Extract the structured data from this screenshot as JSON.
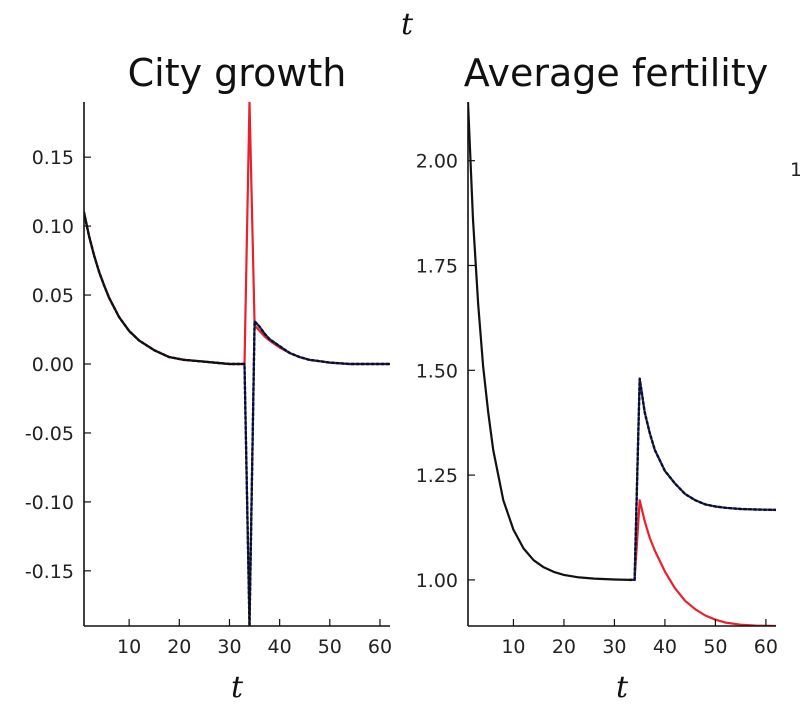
{
  "top_fragment": {
    "label": "t"
  },
  "edge_fragment": {
    "text": "1"
  },
  "chart_data": [
    {
      "type": "line",
      "title": "City growth",
      "xlabel": "t",
      "ylabel": "",
      "xlim": [
        1,
        62
      ],
      "ylim": [
        -0.19,
        0.19
      ],
      "xticks": [
        10,
        20,
        30,
        40,
        50,
        60
      ],
      "xtick_labels": [
        "10",
        "20",
        "30",
        "40",
        "50",
        "60"
      ],
      "yticks": [
        -0.15,
        -0.1,
        -0.05,
        0.0,
        0.05,
        0.1,
        0.15
      ],
      "ytick_labels": [
        "-0.15",
        "-0.10",
        "-0.05",
        "0.00",
        "0.05",
        "0.10",
        "0.15"
      ],
      "grid": false,
      "series": [
        {
          "color": "#e8212a",
          "dash": "",
          "x": [
            1,
            2,
            3,
            4,
            5,
            6,
            8,
            10,
            12,
            15,
            18,
            21,
            24,
            27,
            30,
            33,
            34,
            35,
            36,
            37,
            38,
            40,
            42,
            44,
            46,
            48,
            50,
            54,
            58,
            62
          ],
          "y": [
            0.11,
            0.093,
            0.079,
            0.067,
            0.057,
            0.048,
            0.034,
            0.024,
            0.017,
            0.01,
            0.005,
            0.003,
            0.002,
            0.001,
            0.0,
            0.0,
            0.19,
            0.028,
            0.024,
            0.02,
            0.017,
            0.012,
            0.008,
            0.005,
            0.003,
            0.002,
            0.001,
            0.0,
            0.0,
            0.0
          ]
        },
        {
          "color": "#1530d8",
          "dash": "",
          "x": [
            33,
            34,
            35,
            36,
            37,
            38,
            40,
            42,
            44,
            46,
            48,
            50,
            54,
            58,
            62
          ],
          "y": [
            0.0,
            -0.19,
            0.031,
            0.027,
            0.022,
            0.018,
            0.013,
            0.008,
            0.005,
            0.003,
            0.002,
            0.001,
            0.0,
            0.0,
            0.0
          ]
        },
        {
          "color": "#111111",
          "dash": "2 3",
          "x": [
            1,
            2,
            3,
            4,
            5,
            6,
            8,
            10,
            12,
            15,
            18,
            21,
            24,
            27,
            30,
            33,
            34,
            35,
            36,
            37,
            38,
            40,
            42,
            44,
            46,
            48,
            50,
            54,
            58,
            62
          ],
          "y": [
            0.11,
            0.093,
            0.079,
            0.067,
            0.057,
            0.048,
            0.034,
            0.024,
            0.017,
            0.01,
            0.005,
            0.003,
            0.002,
            0.001,
            0.0,
            0.0,
            -0.19,
            0.031,
            0.027,
            0.022,
            0.018,
            0.013,
            0.008,
            0.005,
            0.003,
            0.002,
            0.001,
            0.0,
            0.0,
            0.0
          ]
        },
        {
          "color": "#111111",
          "dash": "",
          "x": [
            1,
            2,
            3,
            4,
            5,
            6,
            8,
            10,
            12,
            15,
            18,
            21,
            24,
            27,
            30,
            33
          ],
          "y": [
            0.11,
            0.093,
            0.079,
            0.067,
            0.057,
            0.048,
            0.034,
            0.024,
            0.017,
            0.01,
            0.005,
            0.003,
            0.002,
            0.001,
            0.0,
            0.0
          ]
        }
      ]
    },
    {
      "type": "line",
      "title": "Average fertility",
      "xlabel": "t",
      "ylabel": "",
      "xlim": [
        1,
        62
      ],
      "ylim": [
        0.89,
        2.14
      ],
      "xticks": [
        10,
        20,
        30,
        40,
        50,
        60
      ],
      "xtick_labels": [
        "10",
        "20",
        "30",
        "40",
        "50",
        "60"
      ],
      "yticks": [
        1.0,
        1.25,
        1.5,
        1.75,
        2.0
      ],
      "ytick_labels": [
        "1.00",
        "1.25",
        "1.50",
        "1.75",
        "2.00"
      ],
      "grid": false,
      "series": [
        {
          "color": "#e8212a",
          "dash": "",
          "x": [
            33,
            34,
            35,
            36,
            37,
            38,
            40,
            42,
            44,
            46,
            48,
            50,
            52,
            55,
            58,
            62
          ],
          "y": [
            1.0,
            1.0,
            1.19,
            1.14,
            1.1,
            1.07,
            1.02,
            0.98,
            0.95,
            0.93,
            0.915,
            0.905,
            0.898,
            0.893,
            0.891,
            0.89
          ]
        },
        {
          "color": "#1530d8",
          "dash": "",
          "x": [
            33,
            34,
            35,
            36,
            37,
            38,
            40,
            42,
            44,
            46,
            48,
            50,
            52,
            55,
            58,
            62
          ],
          "y": [
            1.0,
            1.0,
            1.48,
            1.4,
            1.35,
            1.31,
            1.26,
            1.23,
            1.205,
            1.19,
            1.18,
            1.175,
            1.172,
            1.169,
            1.168,
            1.167
          ]
        },
        {
          "color": "#111111",
          "dash": "2 3",
          "x": [
            33,
            34,
            35,
            36,
            37,
            38,
            40,
            42,
            44,
            46,
            48,
            50,
            52,
            55,
            58,
            62
          ],
          "y": [
            1.0,
            1.0,
            1.48,
            1.4,
            1.35,
            1.31,
            1.26,
            1.23,
            1.205,
            1.19,
            1.18,
            1.175,
            1.172,
            1.169,
            1.168,
            1.167
          ]
        },
        {
          "color": "#111111",
          "dash": "",
          "x": [
            1,
            2,
            3,
            4,
            5,
            6,
            8,
            10,
            12,
            14,
            16,
            18,
            20,
            23,
            26,
            30,
            33
          ],
          "y": [
            2.14,
            1.86,
            1.66,
            1.51,
            1.4,
            1.31,
            1.19,
            1.12,
            1.075,
            1.047,
            1.03,
            1.019,
            1.012,
            1.006,
            1.003,
            1.001,
            1.0
          ]
        }
      ]
    }
  ]
}
